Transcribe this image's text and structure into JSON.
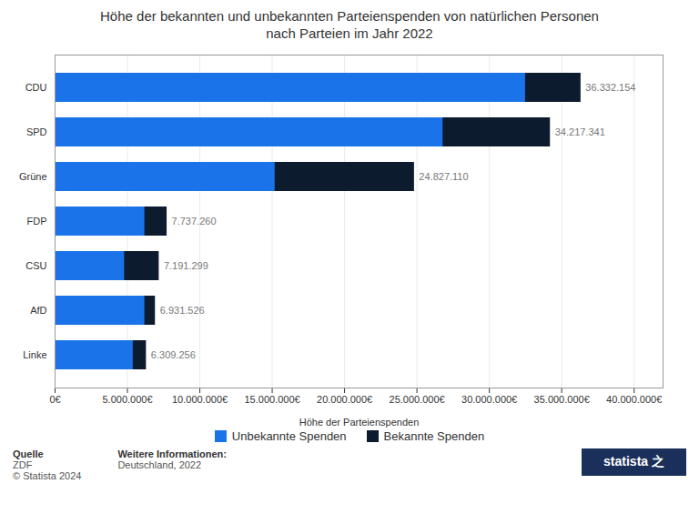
{
  "chart_data": {
    "type": "bar",
    "orientation": "horizontal",
    "stacked": false,
    "title": "Höhe der bekannten und unbekannten Parteienspenden von natürlichen Personen\nnach Parteien im Jahr 2022",
    "categories": [
      "CDU",
      "SPD",
      "Grüne",
      "FDP",
      "CSU",
      "AfD",
      "Linke"
    ],
    "series": [
      {
        "name": "Unbekannte Spenden",
        "color": "#1a73e8",
        "values": [
          32500000,
          26800000,
          15200000,
          6200000,
          4800000,
          6200000,
          5400000
        ]
      },
      {
        "name": "Bekannte Spenden",
        "color": "#0d1b2e",
        "values": [
          36332154,
          34217341,
          24827110,
          7737260,
          7191299,
          6931526,
          6309256
        ],
        "value_labels": [
          "36.332.154",
          "34.217.341",
          "24.827.110",
          "7.737.260",
          "7.191.299",
          "6.931.526",
          "6.309.256"
        ]
      }
    ],
    "xlabel": "Höhe der Parteienspenden",
    "xlim": [
      0,
      42000000
    ],
    "xticks": [
      {
        "value": 0,
        "label": "0€"
      },
      {
        "value": 5000000,
        "label": "5.000.000€"
      },
      {
        "value": 10000000,
        "label": "10.000.000€"
      },
      {
        "value": 15000000,
        "label": "15.000.000€"
      },
      {
        "value": 20000000,
        "label": "20.000.000€"
      },
      {
        "value": 25000000,
        "label": "25.000.000€"
      },
      {
        "value": 30000000,
        "label": "30.000.000€"
      },
      {
        "value": 35000000,
        "label": "35.000.000€"
      },
      {
        "value": 40000000,
        "label": "40.000.000€"
      }
    ],
    "grid": true,
    "data_labels": true,
    "legend": "bottom",
    "annotations": [
      {
        "title": "Quelle",
        "text": "ZDF\n© Statista 2024"
      },
      {
        "title": "Weitere Informationen:",
        "text": "Deutschland, 2022"
      },
      {
        "text": "statista 之"
      }
    ]
  }
}
